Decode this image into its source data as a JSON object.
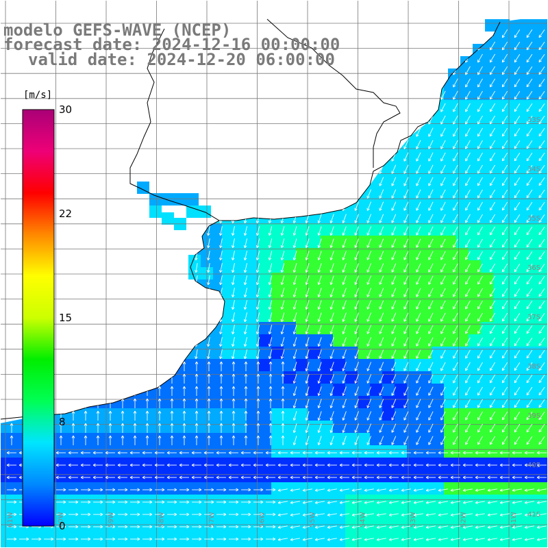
{
  "header": {
    "line1": "modelo GEFS-WAVE (NCEP)",
    "line2": "forecast date: 2024-12-16 00:00:00",
    "line3": "valid date: 2024-12-20 06:00:00"
  },
  "colorbar": {
    "unit": "[m/s]",
    "ticks": [
      "30",
      "22",
      "15",
      "8",
      "0"
    ],
    "stops": [
      "#0000ff",
      "#0088ff",
      "#00e5ff",
      "#00ff55",
      "#00ee00",
      "#ccff00",
      "#ffff00",
      "#ff8800",
      "#ff0000",
      "#ee0077",
      "#aa0077"
    ]
  },
  "map": {
    "lat_labels": [
      "33S",
      "34S",
      "35S",
      "36S",
      "37S",
      "38S",
      "39S",
      "40S",
      "41S"
    ],
    "lon_labels": [
      "61W",
      "60W",
      "59W",
      "58W",
      "57W",
      "56W",
      "55W",
      "54W",
      "53W",
      "52W",
      "51W"
    ],
    "land_color": "#ffffff",
    "ocean_palette": {
      "strong_blue": "#0030ff",
      "blue": "#0070ff",
      "light_blue": "#00aaff",
      "cyan": "#00e0ff",
      "aqua": "#00ffcc",
      "green": "#33ff33"
    }
  }
}
